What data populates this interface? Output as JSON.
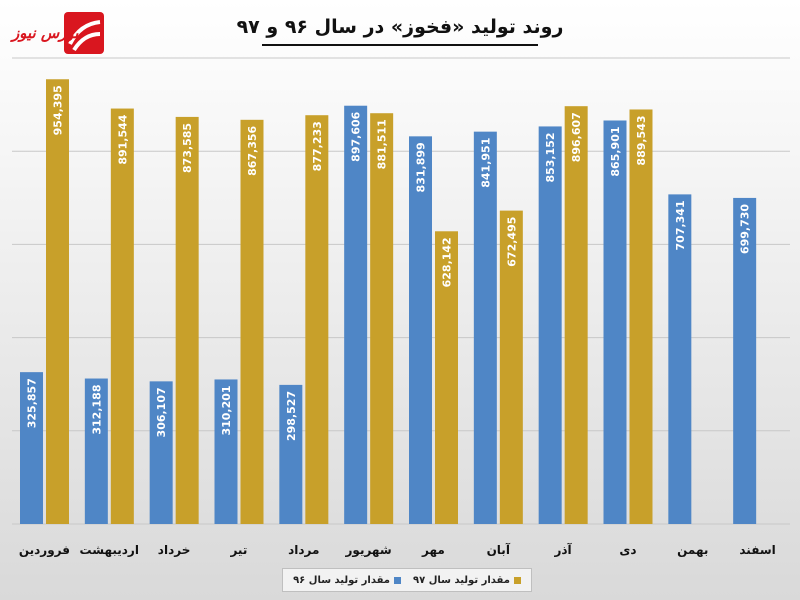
{
  "header": {
    "title": "روند تولید «فخوز» در سال ۹۶ و ۹۷"
  },
  "logo": {
    "text": "بورس نیوز",
    "color": "#d9161f"
  },
  "colors": {
    "series96": "#4f86c6",
    "series97": "#c8a02a",
    "gridline": "#c8c8c8"
  },
  "chart_data": {
    "type": "bar",
    "title": "روند تولید «فخوز» در سال ۹۶ و ۹۷",
    "categories": [
      "فروردین",
      "اردیبهشت",
      "خرداد",
      "تیر",
      "مرداد",
      "شهریور",
      "مهر",
      "آبان",
      "آذر",
      "دی",
      "بهمن",
      "اسفند"
    ],
    "series": [
      {
        "name": "مقدار تولید سال ۹۶",
        "values": [
          325857,
          312188,
          306107,
          310201,
          298527,
          897606,
          831899,
          841951,
          853152,
          865901,
          707341,
          699730
        ],
        "labels": [
          "325,857",
          "312,188",
          "306,107",
          "310,201",
          "298,527",
          "897,606",
          "831,899",
          "841,951",
          "853,152",
          "865,901",
          "707,341",
          "699,730"
        ]
      },
      {
        "name": "مقدار تولید سال ۹۷",
        "values": [
          954395,
          891544,
          873585,
          867356,
          877233,
          881511,
          628142,
          672495,
          896607,
          889543,
          null,
          null
        ],
        "labels": [
          "954,395",
          "891,544",
          "873,585",
          "867,356",
          "877,233",
          "881,511",
          "628,142",
          "672,495",
          "896,607",
          "889,543",
          "",
          ""
        ]
      }
    ],
    "ylim": [
      0,
      1000000
    ],
    "grid": true,
    "legend_position": "bottom",
    "xlabel": "",
    "ylabel": ""
  }
}
